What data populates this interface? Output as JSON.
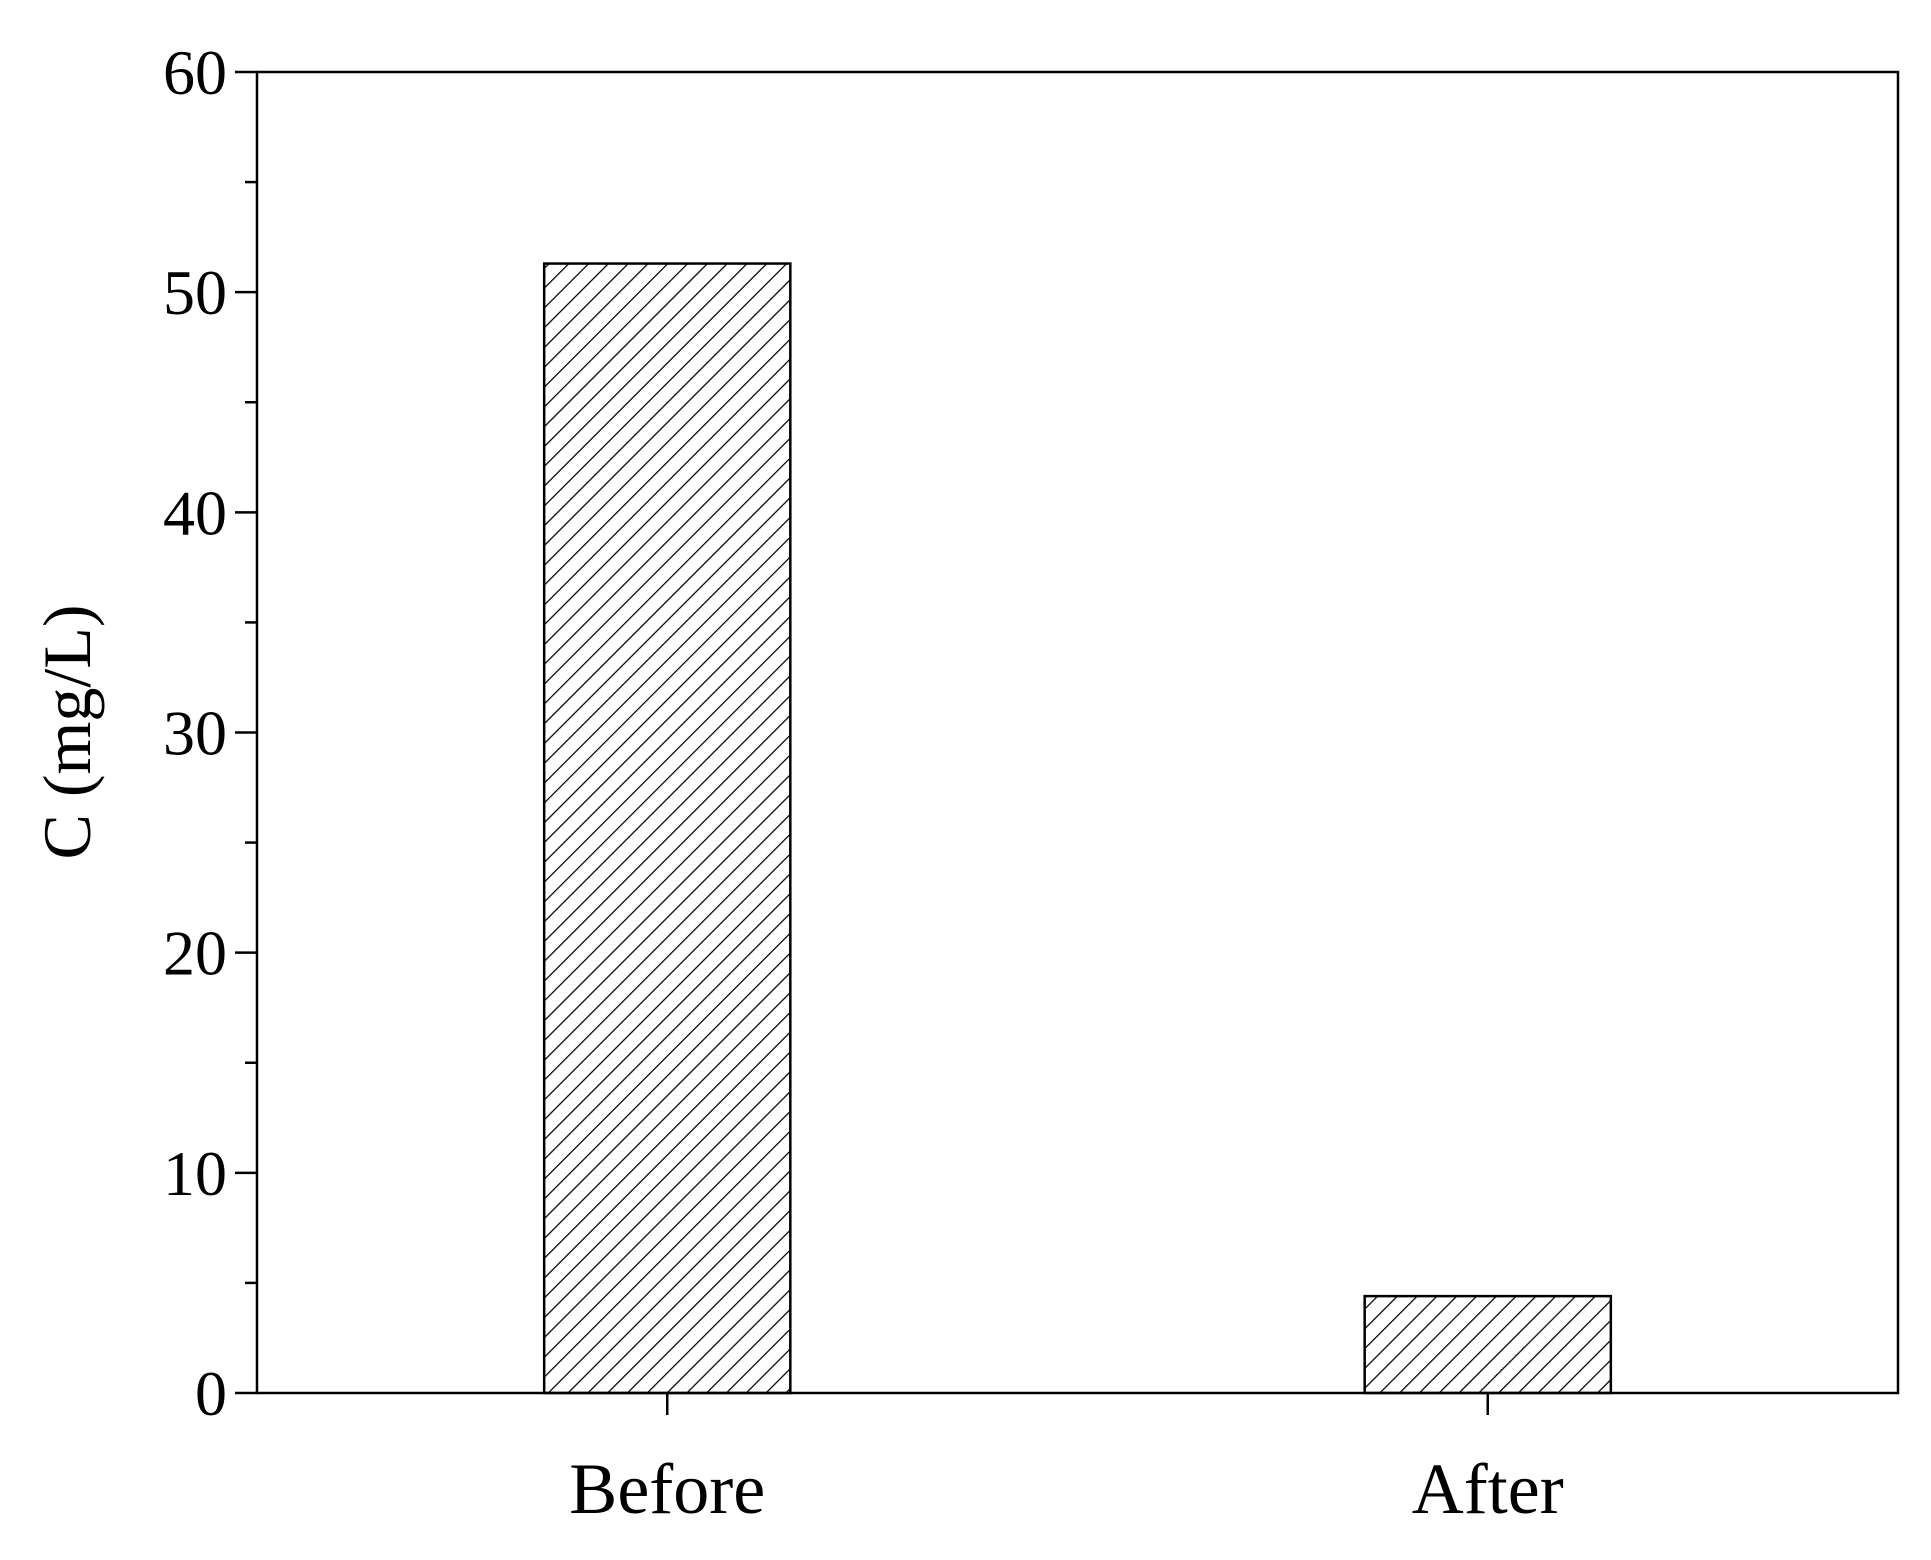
{
  "chart_data": {
    "type": "bar",
    "y_label": "C (mg/L)",
    "categories": [
      "Before",
      "After"
    ],
    "values": [
      51.3,
      4.4
    ],
    "color": "#000000",
    "ylim": [
      0,
      60
    ],
    "yticks": [
      0,
      10,
      20,
      30,
      40,
      50,
      60
    ],
    "minor_yticks": [
      5,
      15,
      25,
      35,
      45,
      55
    ],
    "hatch": "diagonal"
  }
}
